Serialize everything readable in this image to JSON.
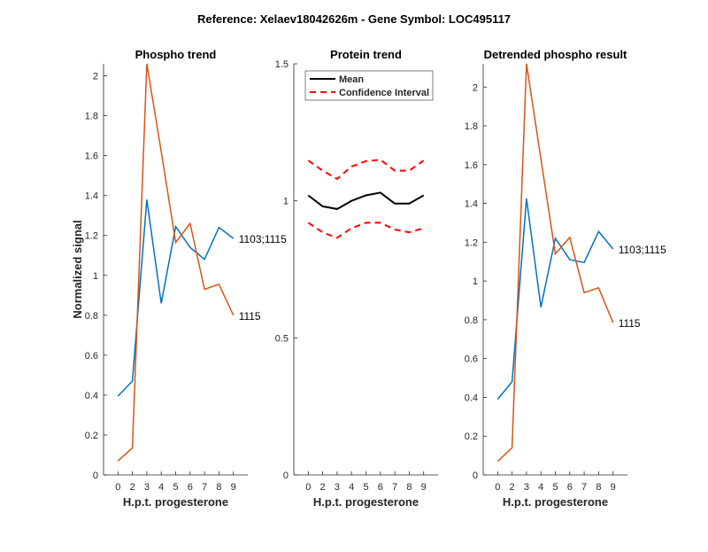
{
  "figure_title": "Reference:  Xelaev18042626m - Gene Symbol:  LOC495117",
  "colors": {
    "blue": "#0072BD",
    "orange": "#D95319",
    "mean": "#000000",
    "ci": "#FF0000",
    "axis": "#262626"
  },
  "chart_data": [
    {
      "type": "line",
      "title": "Phospho trend",
      "xlabel": "H.p.t. progesterone",
      "ylabel": "Normalized signal",
      "categories": [
        "0",
        "2",
        "3",
        "4",
        "5",
        "6",
        "7",
        "8",
        "9"
      ],
      "ylim": [
        0,
        2.06
      ],
      "yticks": [
        "0",
        "0.2",
        "0.4",
        "0.6",
        "0.8",
        "1",
        "1.2",
        "1.4",
        "1.6",
        "1.8",
        "2"
      ],
      "series": [
        {
          "name": "1103;1115",
          "color": "blue",
          "values": [
            0.395,
            0.47,
            1.38,
            0.86,
            1.245,
            1.14,
            1.08,
            1.24,
            1.185
          ]
        },
        {
          "name": "1115",
          "color": "orange",
          "values": [
            0.07,
            0.135,
            2.06,
            1.62,
            1.165,
            1.26,
            0.93,
            0.955,
            0.8
          ]
        }
      ]
    },
    {
      "type": "line",
      "title": "Protein trend",
      "xlabel": "H.p.t. progesterone",
      "categories": [
        "0",
        "2",
        "3",
        "4",
        "5",
        "6",
        "7",
        "8",
        "9"
      ],
      "ylim": [
        0,
        1.5
      ],
      "yticks": [
        "0",
        "0.5",
        "1",
        "1.5"
      ],
      "legend": {
        "placement": "top-right",
        "entries": [
          "Mean",
          "Confidence Interval"
        ]
      },
      "series": [
        {
          "name": "Mean",
          "color": "mean",
          "style": "solid",
          "values": [
            1.02,
            0.98,
            0.97,
            1.0,
            1.02,
            1.03,
            0.99,
            0.99,
            1.02
          ]
        },
        {
          "name": "Confidence Interval upper",
          "color": "ci",
          "style": "dashed",
          "values": [
            1.147,
            1.11,
            1.08,
            1.125,
            1.145,
            1.15,
            1.11,
            1.11,
            1.147
          ]
        },
        {
          "name": "Confidence Interval lower",
          "color": "ci",
          "style": "dashed",
          "values": [
            0.92,
            0.885,
            0.865,
            0.9,
            0.92,
            0.92,
            0.895,
            0.885,
            0.9
          ]
        }
      ]
    },
    {
      "type": "line",
      "title": "Detrended phospho result",
      "xlabel": "H.p.t. progesterone",
      "categories": [
        "0",
        "2",
        "3",
        "4",
        "5",
        "6",
        "7",
        "8",
        "9"
      ],
      "ylim": [
        0,
        2.12
      ],
      "yticks": [
        "0",
        "0.2",
        "0.4",
        "0.6",
        "0.8",
        "1",
        "1.2",
        "1.4",
        "1.6",
        "1.8",
        "2"
      ],
      "series": [
        {
          "name": "1103;1115",
          "color": "blue",
          "values": [
            0.39,
            0.48,
            1.425,
            0.865,
            1.22,
            1.11,
            1.095,
            1.255,
            1.165
          ]
        },
        {
          "name": "1115",
          "color": "orange",
          "values": [
            0.07,
            0.14,
            2.12,
            1.63,
            1.14,
            1.225,
            0.94,
            0.965,
            0.785
          ]
        }
      ]
    }
  ]
}
